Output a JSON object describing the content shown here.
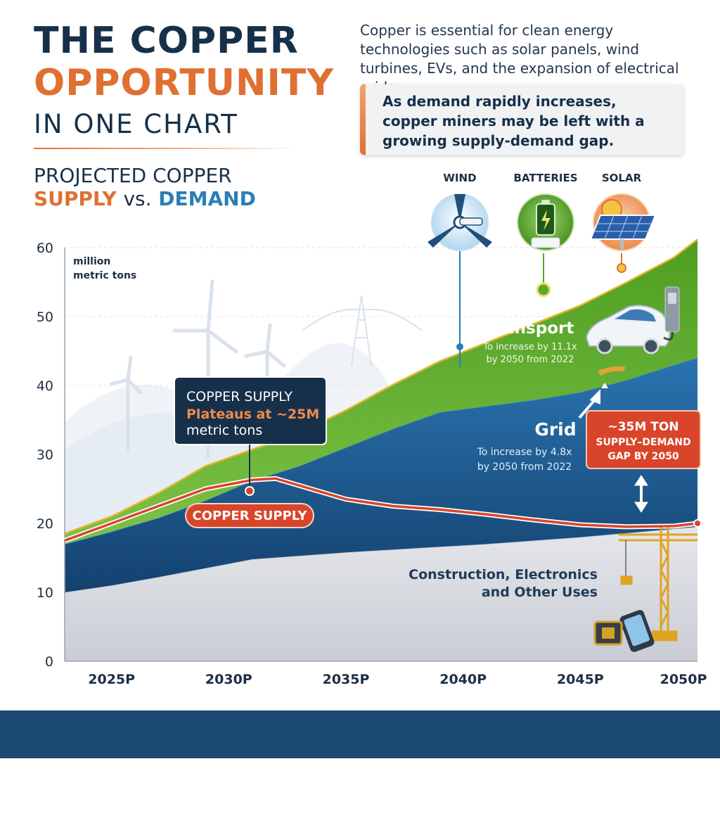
{
  "header": {
    "title_line1": "THE COPPER",
    "title_line2": "OPPORTUNITY",
    "title_line3": "IN ONE CHART",
    "intro": "Copper is essential for clean energy technologies such as solar panels, wind turbines, EVs, and the expansion of electrical grids.",
    "callout": "As demand rapidly increases, copper miners may be left with a growing supply-demand gap."
  },
  "subtitle": {
    "line1": "PROJECTED COPPER",
    "supply_word": "SUPPLY",
    "vs_word": "vs.",
    "demand_word": "DEMAND"
  },
  "icons": [
    {
      "label": "WIND",
      "icon": "wind-turbine-icon",
      "color": "#2a7fb4"
    },
    {
      "label": "BATTERIES",
      "icon": "battery-icon",
      "color": "#4f9a22"
    },
    {
      "label": "SOLAR",
      "icon": "solar-panel-icon",
      "color": "#e07032"
    }
  ],
  "annotations": {
    "supply_box_line1": "COPPER SUPPLY",
    "supply_box_line2": "Plateaus at ~25M",
    "supply_box_line3": "metric tons",
    "supply_pill": "COPPER SUPPLY",
    "transport_title": "Transport",
    "transport_line1": "To increase by 11.1x",
    "transport_line2": "by 2050 from 2022",
    "grid_title": "Grid",
    "grid_line1": "To increase by 4.8x",
    "grid_line2": "by 2050 from 2022",
    "gap_line1": "~35M TON",
    "gap_line2": "SUPPLY–DEMAND",
    "gap_line3": "GAP BY 2050",
    "other_line1": "Construction, Electronics",
    "other_line2": "and Other Uses"
  },
  "chart_data": {
    "type": "area",
    "unit_label_line1": "million",
    "unit_label_line2": "metric tons",
    "x": [
      2023,
      2025,
      2027,
      2029,
      2031,
      2033,
      2035,
      2037,
      2039,
      2041,
      2043,
      2045,
      2047,
      2049,
      2050
    ],
    "x_ticks": [
      "2025P",
      "2030P",
      "2035P",
      "2040P",
      "2045P",
      "2050P"
    ],
    "x_tick_values": [
      2025,
      2030,
      2035,
      2040,
      2045,
      2050
    ],
    "ylim": [
      0,
      60
    ],
    "y_ticks": [
      0,
      10,
      20,
      30,
      40,
      50,
      60
    ],
    "grid": true,
    "stacked": true,
    "series": [
      {
        "key": "other",
        "values": [
          10.0,
          11.0,
          12.2,
          13.5,
          14.8,
          15.3,
          15.8,
          16.2,
          16.6,
          17.0,
          17.5,
          18.0,
          18.6,
          19.2,
          19.5
        ],
        "color": "#d9dbe0"
      },
      {
        "key": "grid",
        "values": [
          7.0,
          7.8,
          8.6,
          9.8,
          11.4,
          13.0,
          15.2,
          17.5,
          19.5,
          20.0,
          20.4,
          21.0,
          22.2,
          23.8,
          24.5
        ],
        "color": "#1c5a92"
      },
      {
        "key": "transport",
        "values": [
          1.5,
          2.2,
          3.6,
          5.0,
          4.5,
          4.8,
          5.4,
          6.4,
          7.4,
          9.2,
          11.0,
          12.6,
          14.2,
          15.6,
          17.2
        ],
        "color": "#5aa82d"
      }
    ],
    "supply": {
      "x": [
        2023,
        2025,
        2027,
        2029,
        2031,
        2032,
        2033,
        2035,
        2037,
        2039,
        2041,
        2043,
        2045,
        2047,
        2049,
        2050
      ],
      "values": [
        17.5,
        20.0,
        22.5,
        25.0,
        26.3,
        26.5,
        25.5,
        23.5,
        22.5,
        22.0,
        21.3,
        20.5,
        19.8,
        19.5,
        19.6,
        20.0
      ],
      "color": "#d9452b"
    }
  }
}
